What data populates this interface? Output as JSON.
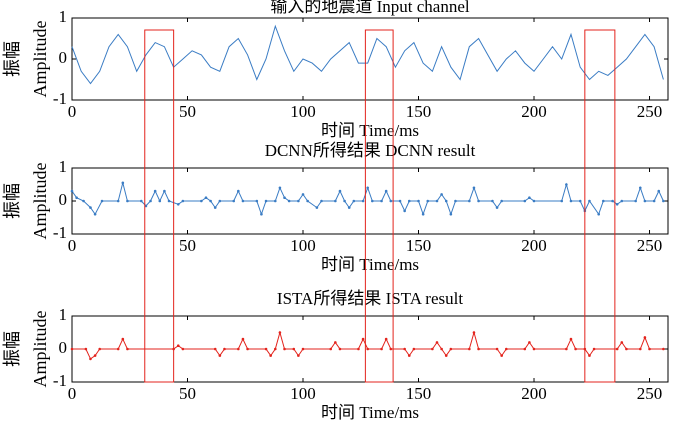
{
  "chart_data": [
    {
      "type": "line",
      "title": "输入的地震道 Input channel",
      "xlabel": "时间 Time/ms",
      "ylabel": [
        "振幅",
        "Amplitude"
      ],
      "color": "#3a7cc4",
      "markers": false,
      "xlim": [
        0,
        258
      ],
      "xticks": [
        0,
        50,
        100,
        150,
        200,
        250
      ],
      "ylim": [
        -1,
        1
      ],
      "yticks": [
        -1,
        0,
        1
      ],
      "x": [
        0,
        4,
        8,
        12,
        16,
        20,
        24,
        28,
        32,
        36,
        40,
        44,
        48,
        52,
        56,
        60,
        64,
        68,
        72,
        76,
        80,
        84,
        88,
        92,
        96,
        100,
        104,
        108,
        112,
        116,
        120,
        124,
        128,
        132,
        136,
        140,
        144,
        148,
        152,
        156,
        160,
        164,
        168,
        172,
        176,
        180,
        184,
        188,
        192,
        196,
        200,
        204,
        208,
        212,
        216,
        220,
        224,
        228,
        232,
        236,
        240,
        244,
        248,
        252,
        256
      ],
      "values": [
        0.3,
        -0.3,
        -0.6,
        -0.3,
        0.3,
        0.6,
        0.3,
        -0.3,
        0.1,
        0.4,
        0.3,
        -0.2,
        0.0,
        0.2,
        0.1,
        -0.2,
        -0.3,
        0.3,
        0.5,
        0.1,
        -0.5,
        0.0,
        0.8,
        0.2,
        -0.3,
        0.0,
        -0.1,
        -0.3,
        0.0,
        0.2,
        0.4,
        -0.1,
        -0.1,
        0.5,
        0.3,
        -0.2,
        0.2,
        0.4,
        -0.1,
        -0.3,
        0.3,
        -0.2,
        -0.5,
        0.3,
        0.5,
        0.1,
        -0.3,
        0.0,
        0.2,
        -0.1,
        -0.3,
        0.0,
        0.3,
        0.0,
        0.6,
        -0.2,
        -0.5,
        -0.3,
        -0.4,
        -0.2,
        0.0,
        0.3,
        0.6,
        0.3,
        -0.5
      ]
    },
    {
      "type": "line",
      "title": "DCNN所得结果 DCNN result",
      "xlabel": "时间 Time/ms",
      "ylabel": [
        "振幅",
        "Amplitude"
      ],
      "color": "#3a7cc4",
      "markers": true,
      "xlim": [
        0,
        258
      ],
      "xticks": [
        0,
        50,
        100,
        150,
        200,
        250
      ],
      "ylim": [
        -1,
        1
      ],
      "yticks": [
        -1,
        0,
        1
      ],
      "x": [
        0,
        2,
        5,
        8,
        10,
        13,
        20,
        22,
        24,
        30,
        32,
        34,
        36,
        38,
        40,
        42,
        46,
        48,
        56,
        58,
        60,
        62,
        64,
        70,
        72,
        74,
        80,
        82,
        84,
        88,
        90,
        92,
        94,
        98,
        100,
        102,
        106,
        108,
        114,
        116,
        118,
        120,
        122,
        126,
        128,
        130,
        134,
        136,
        138,
        142,
        144,
        146,
        150,
        152,
        154,
        158,
        160,
        162,
        164,
        166,
        172,
        174,
        176,
        182,
        184,
        186,
        196,
        198,
        200,
        212,
        214,
        216,
        220,
        222,
        224,
        228,
        230,
        234,
        236,
        238,
        244,
        246,
        248,
        252,
        254,
        256
      ],
      "values": [
        0.3,
        0.1,
        0,
        -0.2,
        -0.4,
        0,
        0,
        0.55,
        0,
        0,
        -0.15,
        0,
        0.3,
        0,
        0.3,
        0,
        -0.1,
        0,
        0,
        0.1,
        0,
        -0.2,
        0,
        0,
        0.3,
        0,
        0,
        -0.4,
        0,
        0,
        0.4,
        0.1,
        0,
        0,
        0.2,
        0,
        -0.2,
        0,
        0,
        0.3,
        0,
        -0.2,
        0,
        0,
        0.4,
        0,
        0,
        0.3,
        0,
        0,
        -0.3,
        0,
        0,
        -0.4,
        0,
        0,
        0.2,
        0,
        -0.4,
        0,
        0,
        0.4,
        0,
        0,
        -0.2,
        0,
        0,
        0.1,
        0,
        0,
        0.5,
        0,
        0,
        -0.3,
        0,
        -0.4,
        0,
        0,
        -0.1,
        0,
        0,
        0.4,
        0,
        0,
        0.3,
        0
      ]
    },
    {
      "type": "line",
      "title": "ISTA所得结果 ISTA result",
      "xlabel": "时间 Time/ms",
      "ylabel": [
        "振幅",
        "Amplitude"
      ],
      "color": "#e3231c",
      "markers": true,
      "xlim": [
        0,
        258
      ],
      "xticks": [
        0,
        50,
        100,
        150,
        200,
        250
      ],
      "ylim": [
        -1,
        1
      ],
      "yticks": [
        -1,
        0,
        1
      ],
      "x": [
        0,
        6,
        8,
        10,
        12,
        20,
        22,
        24,
        44,
        46,
        48,
        62,
        64,
        66,
        72,
        74,
        76,
        84,
        86,
        88,
        90,
        92,
        96,
        98,
        100,
        112,
        114,
        116,
        124,
        126,
        128,
        134,
        136,
        138,
        144,
        146,
        148,
        156,
        158,
        160,
        162,
        164,
        172,
        174,
        176,
        184,
        186,
        188,
        196,
        198,
        200,
        214,
        216,
        218,
        222,
        224,
        226,
        236,
        238,
        240,
        246,
        248,
        250,
        256
      ],
      "values": [
        0,
        0,
        -0.3,
        -0.2,
        0,
        0,
        0.3,
        0,
        0,
        0.1,
        0,
        0,
        -0.2,
        0,
        0,
        0.3,
        0,
        0,
        -0.2,
        0,
        0.5,
        0,
        0,
        -0.2,
        0,
        0,
        0.2,
        0,
        0,
        0.3,
        0,
        0,
        0.3,
        0,
        0,
        -0.2,
        0,
        0,
        0.2,
        0,
        -0.2,
        0,
        0,
        0.5,
        0,
        0,
        -0.2,
        0,
        0,
        0.2,
        0,
        0,
        0.3,
        0,
        0,
        -0.2,
        0,
        0,
        0.2,
        0,
        0,
        0.35,
        0,
        0
      ]
    }
  ],
  "highlights": {
    "color": "#e3231c",
    "ranges": [
      [
        31.5,
        44
      ],
      [
        127,
        139
      ],
      [
        222,
        235
      ]
    ]
  }
}
